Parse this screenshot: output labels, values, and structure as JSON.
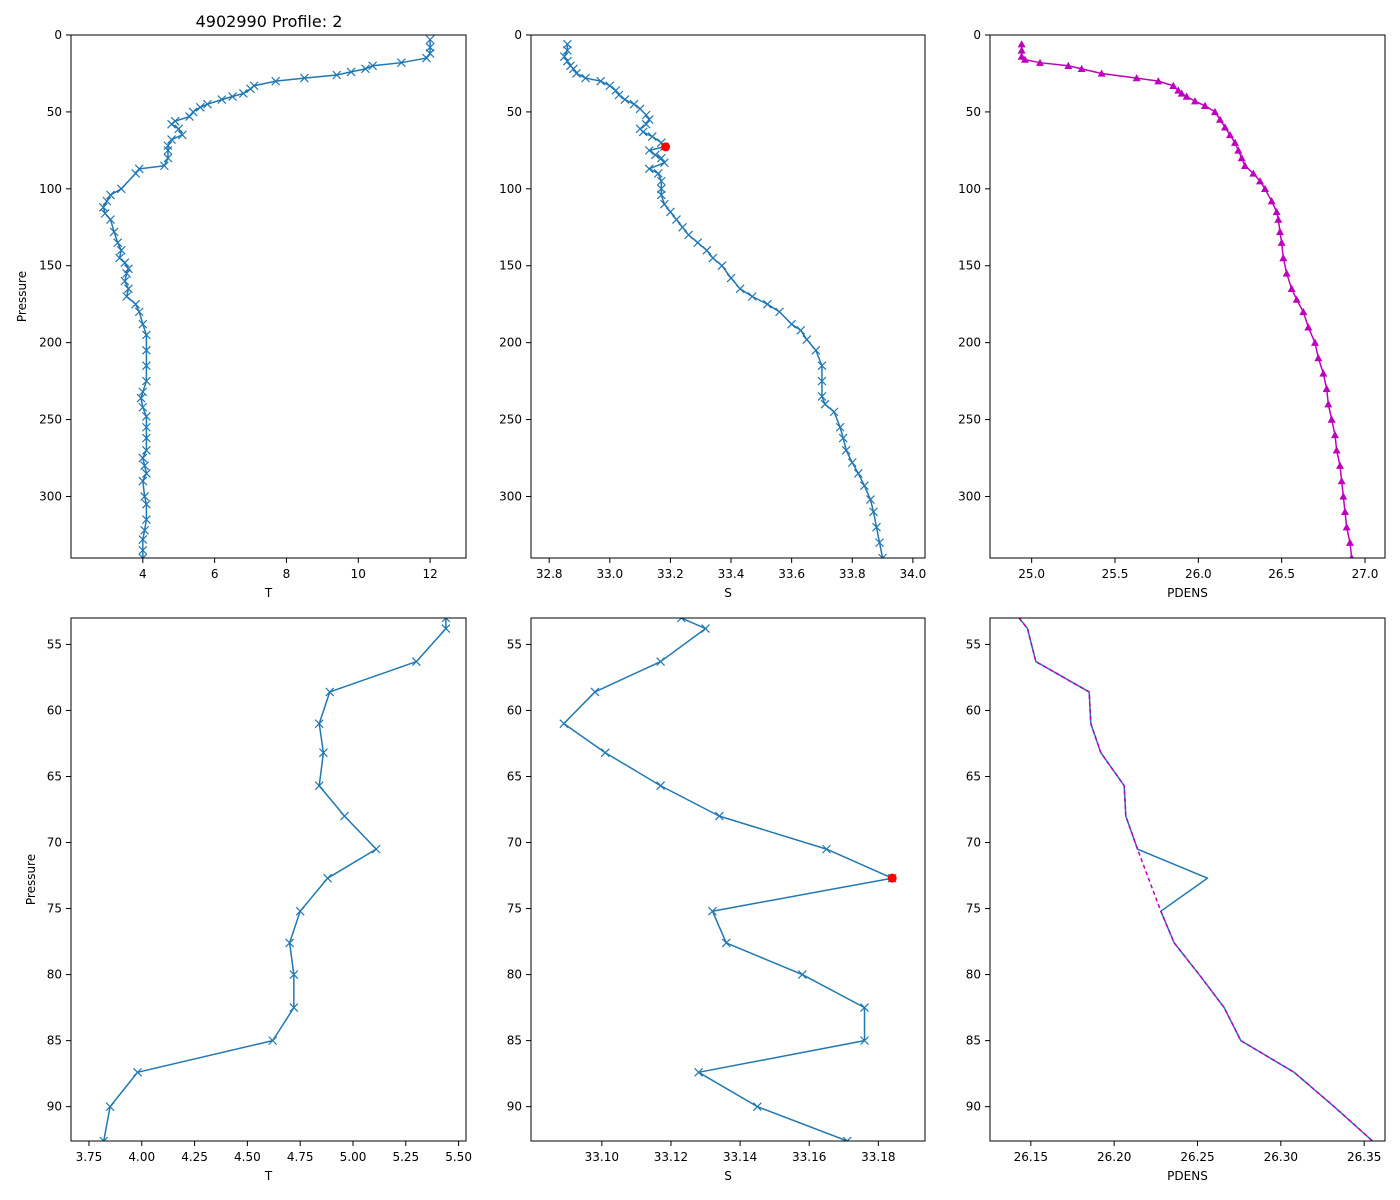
{
  "figure": {
    "title": "4902990 Profile: 2",
    "colors": {
      "line": "#1f77b4",
      "flag": "#ff0000",
      "density": "#bf00bf",
      "axis": "#000000"
    }
  },
  "chart_data": [
    {
      "id": "top-temperature",
      "type": "line",
      "marker": "x",
      "xlabel": "T",
      "ylabel": "Pressure",
      "title": "4902990 Profile: 2",
      "xlim": [
        2.0,
        13.0
      ],
      "ylim": [
        340,
        0
      ],
      "y_inverted": true,
      "xticks": [
        4,
        6,
        8,
        10,
        12
      ],
      "yticks": [
        0,
        50,
        100,
        150,
        200,
        250,
        300
      ],
      "series": [
        {
          "name": "T",
          "color": "#1f77b4",
          "x": [
            12.0,
            12.0,
            12.0,
            11.9,
            11.2,
            10.4,
            10.2,
            9.8,
            9.4,
            8.5,
            7.7,
            7.1,
            7.0,
            6.8,
            6.5,
            6.2,
            5.8,
            5.6,
            5.4,
            5.3,
            4.9,
            4.8,
            5.0,
            5.1,
            4.8,
            4.7,
            4.7,
            4.7,
            4.6,
            3.9,
            3.8,
            3.4,
            3.1,
            3.0,
            2.9,
            2.95,
            3.1,
            3.2,
            3.3,
            3.4,
            3.35,
            3.5,
            3.6,
            3.55,
            3.5,
            3.6,
            3.55,
            3.8,
            3.9,
            4.0,
            4.1,
            4.1,
            4.1,
            4.1,
            4.0,
            3.95,
            4.0,
            4.1,
            4.1,
            4.1,
            4.1,
            4.0,
            4.05,
            4.1,
            4.0,
            4.05,
            4.1,
            4.1,
            4.05,
            4.0,
            4.0,
            4.0
          ],
          "y": [
            3,
            8,
            12,
            15,
            18,
            20,
            22,
            24,
            26,
            28,
            30,
            33,
            35,
            38,
            40,
            42,
            45,
            47,
            50,
            53,
            56,
            58,
            61,
            65,
            68,
            72,
            75,
            80,
            85,
            87,
            90,
            100,
            104,
            108,
            112,
            116,
            120,
            128,
            135,
            140,
            145,
            148,
            152,
            155,
            160,
            165,
            170,
            175,
            180,
            188,
            195,
            205,
            215,
            225,
            232,
            236,
            242,
            248,
            255,
            262,
            270,
            275,
            280,
            285,
            290,
            300,
            305,
            315,
            322,
            328,
            335,
            340
          ]
        }
      ],
      "flag": null
    },
    {
      "id": "top-salinity",
      "type": "line",
      "marker": "x",
      "xlabel": "S",
      "ylabel": "",
      "xlim": [
        32.74,
        34.04
      ],
      "ylim": [
        340,
        0
      ],
      "y_inverted": true,
      "xticks": [
        32.8,
        33.0,
        33.2,
        33.4,
        33.6,
        33.8,
        34.0
      ],
      "yticks": [
        0,
        50,
        100,
        150,
        200,
        250,
        300
      ],
      "series": [
        {
          "name": "S",
          "color": "#1f77b4",
          "x": [
            32.86,
            32.86,
            32.85,
            32.86,
            32.87,
            32.88,
            32.89,
            32.92,
            32.97,
            33.0,
            33.02,
            33.03,
            33.05,
            33.08,
            33.1,
            33.12,
            33.13,
            33.12,
            33.1,
            33.11,
            33.14,
            33.17,
            33.18,
            33.13,
            33.15,
            33.17,
            33.18,
            33.13,
            33.16,
            33.17,
            33.17,
            33.17,
            33.18,
            33.2,
            33.22,
            33.24,
            33.26,
            33.29,
            33.32,
            33.34,
            33.37,
            33.4,
            33.43,
            33.47,
            33.52,
            33.56,
            33.6,
            33.63,
            33.65,
            33.68,
            33.7,
            33.7,
            33.7,
            33.71,
            33.74,
            33.76,
            33.77,
            33.78,
            33.8,
            33.82,
            33.84,
            33.86,
            33.87,
            33.88,
            33.89,
            33.9
          ],
          "y": [
            6,
            10,
            14,
            17,
            20,
            22,
            25,
            28,
            30,
            33,
            36,
            39,
            42,
            45,
            48,
            52,
            55,
            58,
            61,
            63,
            66,
            70,
            72.7,
            75,
            78,
            80,
            83,
            87,
            90,
            95,
            100,
            104,
            110,
            115,
            120,
            125,
            130,
            135,
            140,
            145,
            150,
            158,
            165,
            170,
            175,
            180,
            188,
            192,
            198,
            205,
            215,
            225,
            235,
            240,
            245,
            255,
            262,
            270,
            278,
            285,
            293,
            302,
            310,
            320,
            330,
            340
          ]
        }
      ],
      "flag": {
        "x": 33.184,
        "y": 72.7,
        "color": "#ff0000"
      }
    },
    {
      "id": "top-density",
      "type": "line",
      "marker": "^",
      "xlabel": "PDENS",
      "ylabel": "",
      "xlim": [
        24.75,
        27.12
      ],
      "ylim": [
        340,
        0
      ],
      "y_inverted": true,
      "xticks": [
        25.0,
        25.5,
        26.0,
        26.5,
        27.0
      ],
      "yticks": [
        0,
        50,
        100,
        150,
        200,
        250,
        300
      ],
      "series": [
        {
          "name": "PDENS",
          "color": "#bf00bf",
          "x": [
            24.94,
            24.94,
            24.94,
            24.96,
            25.05,
            25.22,
            25.3,
            25.42,
            25.63,
            25.76,
            25.85,
            25.88,
            25.9,
            25.93,
            25.98,
            26.04,
            26.1,
            26.13,
            26.16,
            26.19,
            26.22,
            26.24,
            26.26,
            26.28,
            26.33,
            26.37,
            26.4,
            26.44,
            26.47,
            26.48,
            26.49,
            26.5,
            26.51,
            26.53,
            26.56,
            26.59,
            26.63,
            26.66,
            26.7,
            26.72,
            26.75,
            26.77,
            26.78,
            26.8,
            26.82,
            26.83,
            26.85,
            26.86,
            26.87,
            26.88,
            26.89,
            26.91,
            26.92
          ],
          "y": [
            6,
            10,
            14,
            16,
            18,
            20,
            22,
            25,
            28,
            30,
            33,
            36,
            38,
            40,
            43,
            46,
            50,
            55,
            60,
            65,
            70,
            75,
            80,
            85,
            90,
            95,
            100,
            108,
            115,
            120,
            128,
            135,
            145,
            155,
            165,
            172,
            180,
            190,
            200,
            210,
            220,
            230,
            240,
            250,
            260,
            270,
            280,
            290,
            300,
            310,
            320,
            330,
            340
          ]
        }
      ],
      "flag": null
    },
    {
      "id": "bottom-temperature",
      "type": "line",
      "marker": "x",
      "xlabel": "T",
      "ylabel": "Pressure",
      "xlim": [
        3.665,
        5.535
      ],
      "ylim": [
        92.6,
        53.0
      ],
      "y_inverted": true,
      "xticks": [
        3.75,
        4.0,
        4.25,
        4.5,
        4.75,
        5.0,
        5.25,
        5.5
      ],
      "yticks": [
        55,
        60,
        65,
        70,
        75,
        80,
        85,
        90
      ],
      "series": [
        {
          "name": "T",
          "color": "#1f77b4",
          "x": [
            5.44,
            5.44,
            5.3,
            4.89,
            4.84,
            4.86,
            4.84,
            4.96,
            5.11,
            4.88,
            4.75,
            4.7,
            4.72,
            4.72,
            4.62,
            3.98,
            3.85,
            3.82
          ],
          "y": [
            53.0,
            53.8,
            56.3,
            58.6,
            61.0,
            63.2,
            65.7,
            68.0,
            70.5,
            72.7,
            75.2,
            77.6,
            80.0,
            82.5,
            85.0,
            87.4,
            90.0,
            92.6
          ]
        }
      ],
      "flag": null
    },
    {
      "id": "bottom-salinity",
      "type": "line",
      "marker": "x",
      "xlabel": "S",
      "ylabel": "",
      "xlim": [
        33.0795,
        33.1935
      ],
      "ylim": [
        92.6,
        53.0
      ],
      "y_inverted": true,
      "xticks": [
        33.1,
        33.12,
        33.14,
        33.16,
        33.18
      ],
      "yticks": [
        55,
        60,
        65,
        70,
        75,
        80,
        85,
        90
      ],
      "series": [
        {
          "name": "S",
          "color": "#1f77b4",
          "x": [
            33.123,
            33.13,
            33.117,
            33.098,
            33.089,
            33.101,
            33.117,
            33.134,
            33.165,
            33.184,
            33.132,
            33.136,
            33.158,
            33.176,
            33.176,
            33.128,
            33.145,
            33.171
          ],
          "y": [
            53.0,
            53.8,
            56.3,
            58.6,
            61.0,
            63.2,
            65.7,
            68.0,
            70.5,
            72.7,
            75.2,
            77.6,
            80.0,
            82.5,
            85.0,
            87.4,
            90.0,
            92.6
          ]
        }
      ],
      "flag": {
        "x": 33.184,
        "y": 72.7,
        "color": "#ff0000"
      }
    },
    {
      "id": "bottom-density",
      "type": "line",
      "marker": "none",
      "xlabel": "PDENS",
      "ylabel": "",
      "xlim": [
        26.1255,
        26.3625
      ],
      "ylim": [
        92.6,
        53.0
      ],
      "y_inverted": true,
      "xticks": [
        26.15,
        26.2,
        26.25,
        26.3,
        26.35
      ],
      "yticks": [
        55,
        60,
        65,
        70,
        75,
        80,
        85,
        90
      ],
      "series": [
        {
          "name": "PDENS",
          "color": "#1f77b4",
          "x": [
            26.143,
            26.148,
            26.153,
            26.185,
            26.186,
            26.192,
            26.206,
            26.207,
            26.214,
            26.256,
            26.228,
            26.236,
            26.251,
            26.266,
            26.276,
            26.308,
            26.332,
            26.355
          ],
          "y": [
            53.0,
            53.8,
            56.3,
            58.6,
            61.0,
            63.2,
            65.7,
            68.0,
            70.5,
            72.7,
            75.2,
            77.6,
            80.0,
            82.5,
            85.0,
            87.4,
            90.0,
            92.6
          ]
        },
        {
          "name": "PDENS-dashed",
          "color": "#bf00bf",
          "dashed": true,
          "x": [
            26.143,
            26.148,
            26.153,
            26.185,
            26.186,
            26.192,
            26.206,
            26.207,
            26.214,
            26.228,
            26.236,
            26.251,
            26.266,
            26.276,
            26.308,
            26.332,
            26.355
          ],
          "y": [
            53.0,
            53.8,
            56.3,
            58.6,
            61.0,
            63.2,
            65.7,
            68.0,
            70.5,
            75.2,
            77.6,
            80.0,
            82.5,
            85.0,
            87.4,
            90.0,
            92.6
          ]
        }
      ],
      "flag": null
    }
  ]
}
